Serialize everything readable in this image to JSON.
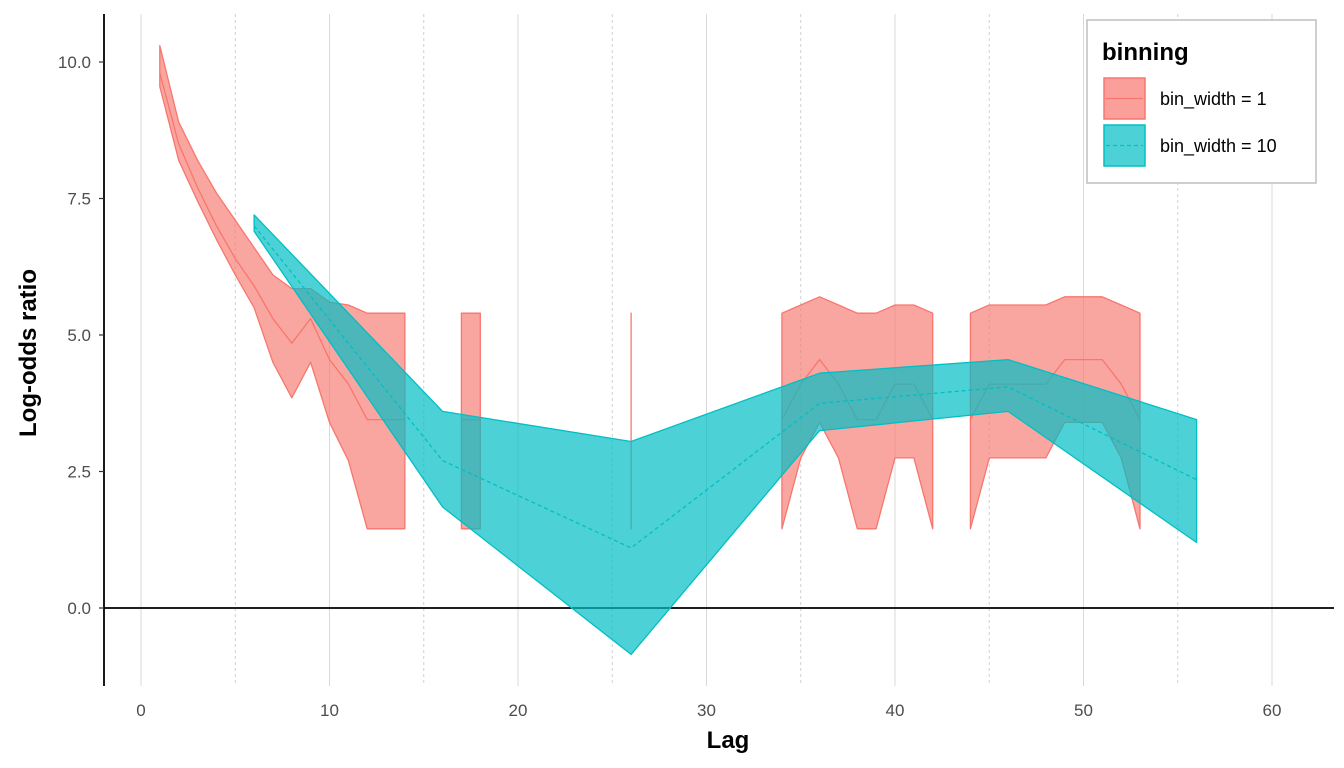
{
  "chart_data": {
    "type": "area",
    "title": "",
    "xlabel": "Lag",
    "ylabel": "Log-odds ratio",
    "xlim": [
      -2,
      63
    ],
    "ylim": [
      -1.4,
      10.9
    ],
    "x_ticks": [
      0,
      10,
      20,
      30,
      40,
      50,
      60
    ],
    "x_tick_labels": [
      "0",
      "10",
      "20",
      "30",
      "40",
      "50",
      "60"
    ],
    "x_minor_grid": [
      5,
      15,
      25,
      35,
      45,
      55
    ],
    "y_ticks": [
      0,
      2.5,
      5,
      7.5,
      10
    ],
    "y_tick_labels": [
      "0.0",
      "2.5",
      "5.0",
      "7.5",
      "10.0"
    ],
    "zero_line": 0,
    "grid": true,
    "legend": {
      "title": "binning",
      "position": "top-right",
      "entries": [
        {
          "label": "bin_width = 1",
          "fill": "#F8766D",
          "line": "#F8766D",
          "linetype": "solid"
        },
        {
          "label": "bin_width = 10",
          "fill": "#00BFC4",
          "line": "#00BFC4",
          "linetype": "dashed"
        }
      ]
    },
    "series": [
      {
        "name": "bin_width = 1",
        "color": "#F8766D",
        "fill_opacity": 0.65,
        "linetype": "solid",
        "segments": [
          {
            "x": [
              1,
              2,
              3,
              4,
              5,
              6,
              7,
              8,
              9,
              10,
              11,
              12,
              13,
              14
            ],
            "mid": [
              9.8,
              8.5,
              7.7,
              7.0,
              6.4,
              5.9,
              5.3,
              4.85,
              5.3,
              4.55,
              4.1,
              3.45,
              3.45,
              3.45
            ],
            "lower": [
              9.55,
              8.2,
              7.45,
              6.75,
              6.1,
              5.5,
              4.5,
              3.85,
              4.5,
              3.4,
              2.7,
              1.45,
              1.45,
              1.45
            ],
            "upper": [
              10.3,
              8.9,
              8.2,
              7.6,
              7.1,
              6.6,
              6.1,
              5.85,
              5.85,
              5.6,
              5.55,
              5.4,
              5.4,
              5.4
            ]
          },
          {
            "x": [
              17,
              18
            ],
            "mid": [
              3.45,
              3.45
            ],
            "lower": [
              1.45,
              1.45
            ],
            "upper": [
              5.4,
              5.4
            ]
          },
          {
            "x": [
              26,
              26
            ],
            "mid": [
              3.45,
              3.45
            ],
            "lower": [
              1.45,
              1.45
            ],
            "upper": [
              5.4,
              5.4
            ]
          },
          {
            "x": [
              34,
              35,
              36,
              37,
              38,
              39,
              40,
              41,
              42
            ],
            "mid": [
              3.45,
              4.1,
              4.55,
              4.1,
              3.45,
              3.45,
              4.1,
              4.1,
              3.45
            ],
            "lower": [
              1.45,
              2.75,
              3.4,
              2.75,
              1.45,
              1.45,
              2.75,
              2.75,
              1.45
            ],
            "upper": [
              5.4,
              5.55,
              5.7,
              5.55,
              5.4,
              5.4,
              5.55,
              5.55,
              5.4
            ]
          },
          {
            "x": [
              44,
              45,
              46,
              47,
              48,
              49,
              50,
              51,
              52,
              53
            ],
            "mid": [
              3.45,
              4.1,
              4.1,
              4.1,
              4.1,
              4.55,
              4.55,
              4.55,
              4.1,
              3.45
            ],
            "lower": [
              1.45,
              2.75,
              2.75,
              2.75,
              2.75,
              3.4,
              3.4,
              3.4,
              2.75,
              1.45
            ],
            "upper": [
              5.4,
              5.55,
              5.55,
              5.55,
              5.55,
              5.7,
              5.7,
              5.7,
              5.55,
              5.4
            ]
          }
        ]
      },
      {
        "name": "bin_width = 10",
        "color": "#00BFC4",
        "fill_opacity": 0.7,
        "linetype": "dashed",
        "segments": [
          {
            "x": [
              6,
              16,
              26,
              36,
              46,
              56
            ],
            "mid": [
              7.0,
              2.7,
              1.1,
              3.75,
              4.05,
              2.35
            ],
            "lower": [
              6.9,
              1.85,
              -0.85,
              3.25,
              3.6,
              1.2
            ],
            "upper": [
              7.2,
              3.6,
              3.05,
              4.3,
              4.55,
              3.45
            ]
          }
        ]
      }
    ]
  }
}
